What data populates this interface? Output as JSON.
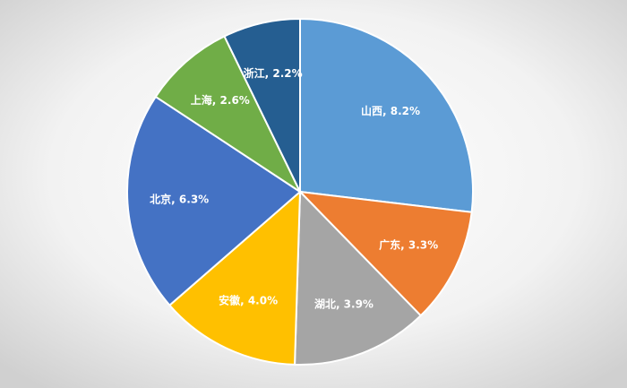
{
  "chart_data": {
    "type": "pie",
    "categories": [
      "山西",
      "广东",
      "湖北",
      "安徽",
      "北京",
      "上海",
      "浙江"
    ],
    "values": [
      8.2,
      3.3,
      3.9,
      4.0,
      6.3,
      2.6,
      2.2
    ],
    "value_labels": [
      "山西, 8.2%",
      "广东, 3.3%",
      "湖北, 3.9%",
      "安徽, 4.0%",
      "北京, 6.3%",
      "上海, 2.6%",
      "浙江, 2.2%"
    ],
    "colors": [
      "#5b9bd5",
      "#ed7d31",
      "#a5a5a5",
      "#ffc000",
      "#4472c4",
      "#70ad47",
      "#255e91"
    ]
  }
}
